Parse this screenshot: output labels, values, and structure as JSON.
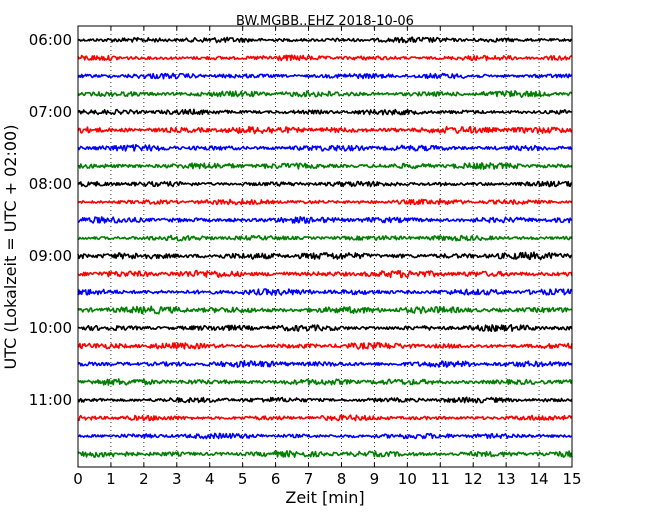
{
  "chart_data": {
    "type": "line",
    "title": "BW.MGBB..EHZ 2018-10-06",
    "xlabel": "Zeit  [min]",
    "ylabel": "UTC (Lokalzeit = UTC + 02:00)",
    "xlim": [
      0,
      15
    ],
    "x_ticks": [
      "0",
      "1",
      "2",
      "3",
      "4",
      "5",
      "6",
      "7",
      "8",
      "9",
      "10",
      "11",
      "12",
      "13",
      "14",
      "15"
    ],
    "y_ticks": [
      "06:00",
      "07:00",
      "08:00",
      "09:00",
      "10:00",
      "11:00"
    ],
    "grid": "vertical dotted",
    "trace_minutes": 15,
    "traces": [
      {
        "start": "06:00",
        "color": "#000000",
        "amplitude": 0.6
      },
      {
        "start": "06:15",
        "color": "#ff0000",
        "amplitude": 0.6
      },
      {
        "start": "06:30",
        "color": "#0000ff",
        "amplitude": 0.6
      },
      {
        "start": "06:45",
        "color": "#008000",
        "amplitude": 0.7
      },
      {
        "start": "07:00",
        "color": "#000000",
        "amplitude": 0.6
      },
      {
        "start": "07:15",
        "color": "#ff0000",
        "amplitude": 0.8
      },
      {
        "start": "07:30",
        "color": "#0000ff",
        "amplitude": 0.7
      },
      {
        "start": "07:45",
        "color": "#008000",
        "amplitude": 0.7
      },
      {
        "start": "08:00",
        "color": "#000000",
        "amplitude": 0.6
      },
      {
        "start": "08:15",
        "color": "#ff0000",
        "amplitude": 0.6
      },
      {
        "start": "08:30",
        "color": "#0000ff",
        "amplitude": 0.7
      },
      {
        "start": "08:45",
        "color": "#008000",
        "amplitude": 0.6
      },
      {
        "start": "09:00",
        "color": "#000000",
        "amplitude": 0.8
      },
      {
        "start": "09:15",
        "color": "#ff0000",
        "amplitude": 0.8
      },
      {
        "start": "09:30",
        "color": "#0000ff",
        "amplitude": 0.7
      },
      {
        "start": "09:45",
        "color": "#008000",
        "amplitude": 0.8
      },
      {
        "start": "10:00",
        "color": "#000000",
        "amplitude": 0.7
      },
      {
        "start": "10:15",
        "color": "#ff0000",
        "amplitude": 0.7
      },
      {
        "start": "10:30",
        "color": "#0000ff",
        "amplitude": 0.7
      },
      {
        "start": "10:45",
        "color": "#008000",
        "amplitude": 0.7
      },
      {
        "start": "11:00",
        "color": "#000000",
        "amplitude": 0.6
      },
      {
        "start": "11:15",
        "color": "#ff0000",
        "amplitude": 0.6
      },
      {
        "start": "11:30",
        "color": "#0000ff",
        "amplitude": 0.6
      },
      {
        "start": "11:45",
        "color": "#008000",
        "amplitude": 0.7
      }
    ]
  }
}
